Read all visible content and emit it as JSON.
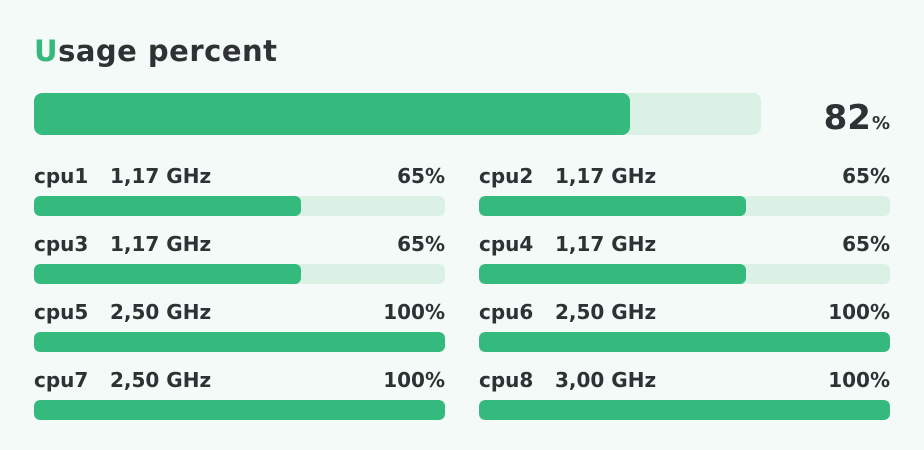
{
  "header": {
    "title_first": "U",
    "title_rest": "sage percent"
  },
  "total": {
    "value": "82",
    "unit": "%",
    "fraction": 0.82
  },
  "cpus": [
    {
      "name": "cpu1",
      "freq": "1,17 GHz",
      "percent": "65%",
      "fraction": 0.65
    },
    {
      "name": "cpu2",
      "freq": "1,17 GHz",
      "percent": "65%",
      "fraction": 0.65
    },
    {
      "name": "cpu3",
      "freq": "1,17 GHz",
      "percent": "65%",
      "fraction": 0.65
    },
    {
      "name": "cpu4",
      "freq": "1,17 GHz",
      "percent": "65%",
      "fraction": 0.65
    },
    {
      "name": "cpu5",
      "freq": "2,50 GHz",
      "percent": "100%",
      "fraction": 1.0
    },
    {
      "name": "cpu6",
      "freq": "2,50 GHz",
      "percent": "100%",
      "fraction": 1.0
    },
    {
      "name": "cpu7",
      "freq": "2,50 GHz",
      "percent": "100%",
      "fraction": 1.0
    },
    {
      "name": "cpu8",
      "freq": "3,00 GHz",
      "percent": "100%",
      "fraction": 1.0
    }
  ],
  "colors": {
    "accent": "#35ba7e",
    "track": "#dcf1e6",
    "background": "#f4faf7",
    "text": "#2f3235"
  }
}
